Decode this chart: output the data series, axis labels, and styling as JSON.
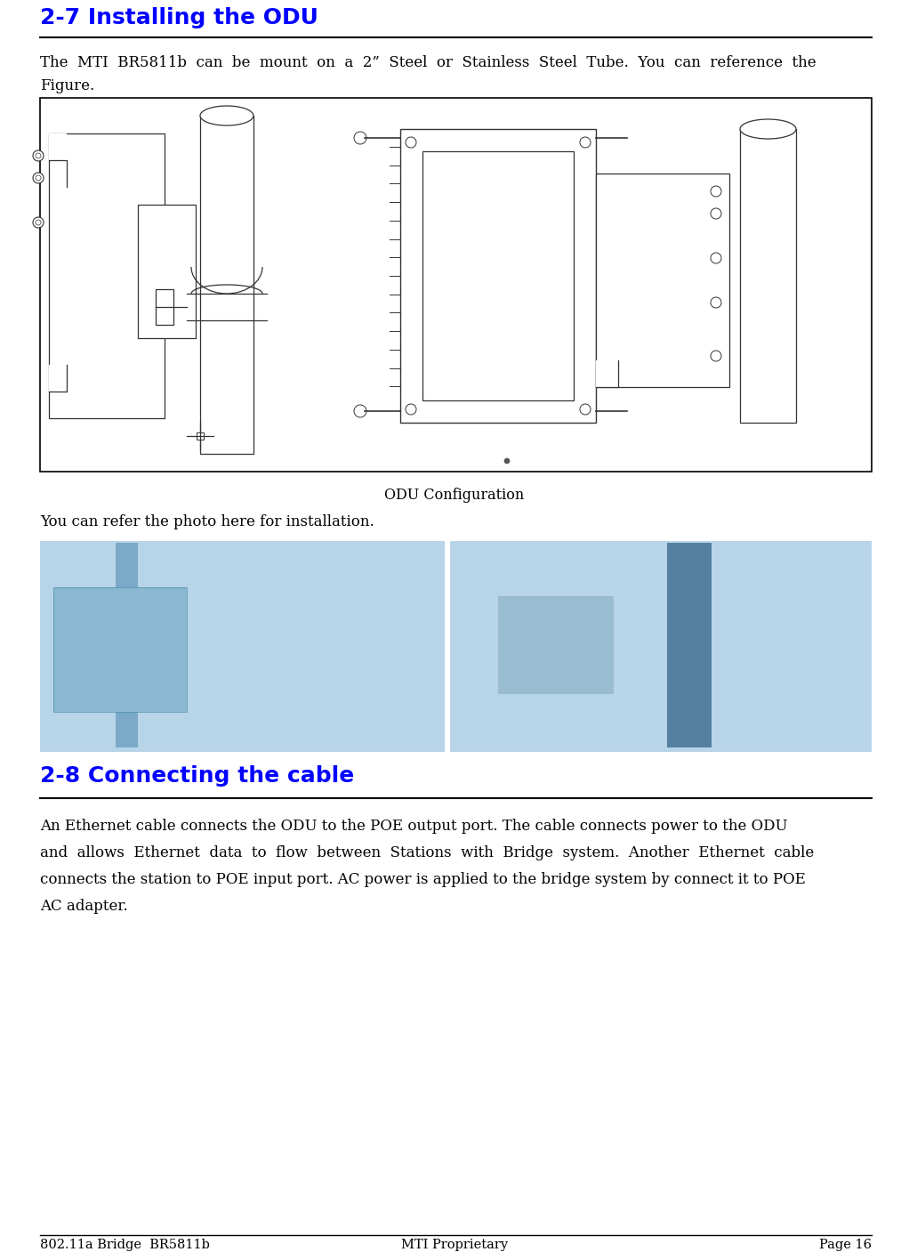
{
  "page_bg": "#ffffff",
  "header_title": "2-7 Installing the ODU",
  "header_color": "#0000ff",
  "header_underline_color": "#000000",
  "para1_line1": "The  MTI  BR5811b  can  be  mount  on  a  2”  Steel  or  Stainless  Steel  Tube.  You  can  reference  the",
  "para1_line2": "Figure.",
  "diagram_box_border": "#000000",
  "diagram_caption": "ODU Configuration",
  "para2": "You can refer the photo here for installation.",
  "section2_title": "2-8 Connecting the cable",
  "section2_color": "#0000ff",
  "section2_underline_color": "#000000",
  "para3_lines": [
    "An Ethernet cable connects the ODU to the POE output port. The cable connects power to the ODU",
    "and  allows  Ethernet  data  to  flow  between  Stations  with  Bridge  system.  Another  Ethernet  cable",
    "connects the station to POE input port. AC power is applied to the bridge system by connect it to POE",
    "AC adapter."
  ],
  "footer_left": "802.11a Bridge  BR5811b",
  "footer_center": "MTI Proprietary",
  "footer_right": "Page 16",
  "footer_line_color": "#000000",
  "diagram_fill": "#ffffff",
  "photo_fill": "#b8d4e8"
}
